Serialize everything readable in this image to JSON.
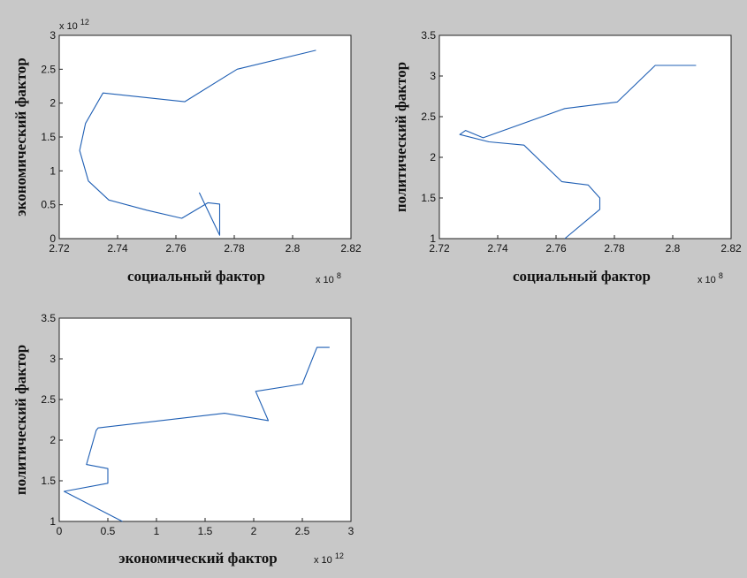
{
  "chart_data": [
    {
      "type": "line",
      "xlabel": "социальный фактор",
      "ylabel": "экономический фактор",
      "x_exponent": {
        "base": "x 10",
        "power": "8"
      },
      "y_exponent": {
        "base": "x 10",
        "power": "12"
      },
      "xlim": [
        2.72,
        2.82
      ],
      "ylim": [
        0,
        3
      ],
      "xticks": [
        "2.72",
        "2.74",
        "2.76",
        "2.78",
        "2.8",
        "2.82"
      ],
      "yticks": [
        "0",
        "0.5",
        "1",
        "1.5",
        "2",
        "2.5",
        "3"
      ],
      "series": [
        {
          "x": [
            2.808,
            2.781,
            2.763,
            2.735,
            2.729,
            2.727,
            2.73,
            2.737,
            2.75,
            2.762,
            2.771,
            2.775,
            2.775,
            2.768
          ],
          "y": [
            2.78,
            2.5,
            2.02,
            2.15,
            1.7,
            1.3,
            0.85,
            0.57,
            0.42,
            0.3,
            0.53,
            0.51,
            0.05,
            0.68
          ]
        }
      ]
    },
    {
      "type": "line",
      "xlabel": "социальный фактор",
      "ylabel": "политический фактор",
      "x_exponent": {
        "base": "x 10",
        "power": "8"
      },
      "xlim": [
        2.72,
        2.82
      ],
      "ylim": [
        1,
        3.5
      ],
      "xticks": [
        "2.72",
        "2.74",
        "2.76",
        "2.78",
        "2.8",
        "2.82"
      ],
      "yticks": [
        "1",
        "1.5",
        "2",
        "2.5",
        "3",
        "3.5"
      ],
      "series": [
        {
          "x": [
            2.808,
            2.794,
            2.781,
            2.763,
            2.735,
            2.729,
            2.727,
            2.737,
            2.749,
            2.762,
            2.771,
            2.775,
            2.775,
            2.763
          ],
          "y": [
            3.13,
            3.13,
            2.68,
            2.6,
            2.24,
            2.33,
            2.28,
            2.19,
            2.15,
            1.7,
            1.66,
            1.5,
            1.36,
            1.0
          ]
        }
      ]
    },
    {
      "type": "line",
      "xlabel": "экономический фактор",
      "ylabel": "политический фактор",
      "x_exponent": {
        "base": "x 10",
        "power": "12"
      },
      "xlim": [
        0,
        3
      ],
      "ylim": [
        1,
        3.5
      ],
      "xticks": [
        "0",
        "0.5",
        "1",
        "1.5",
        "2",
        "2.5",
        "3"
      ],
      "yticks": [
        "1",
        "1.5",
        "2",
        "2.5",
        "3",
        "3.5"
      ],
      "series": [
        {
          "x": [
            2.78,
            2.65,
            2.5,
            2.02,
            2.15,
            1.7,
            0.4,
            0.38,
            0.28,
            0.5,
            0.5,
            0.05,
            0.65
          ],
          "y": [
            3.14,
            3.14,
            2.69,
            2.6,
            2.24,
            2.33,
            2.15,
            2.12,
            1.7,
            1.65,
            1.47,
            1.37,
            1.0
          ]
        }
      ]
    }
  ]
}
